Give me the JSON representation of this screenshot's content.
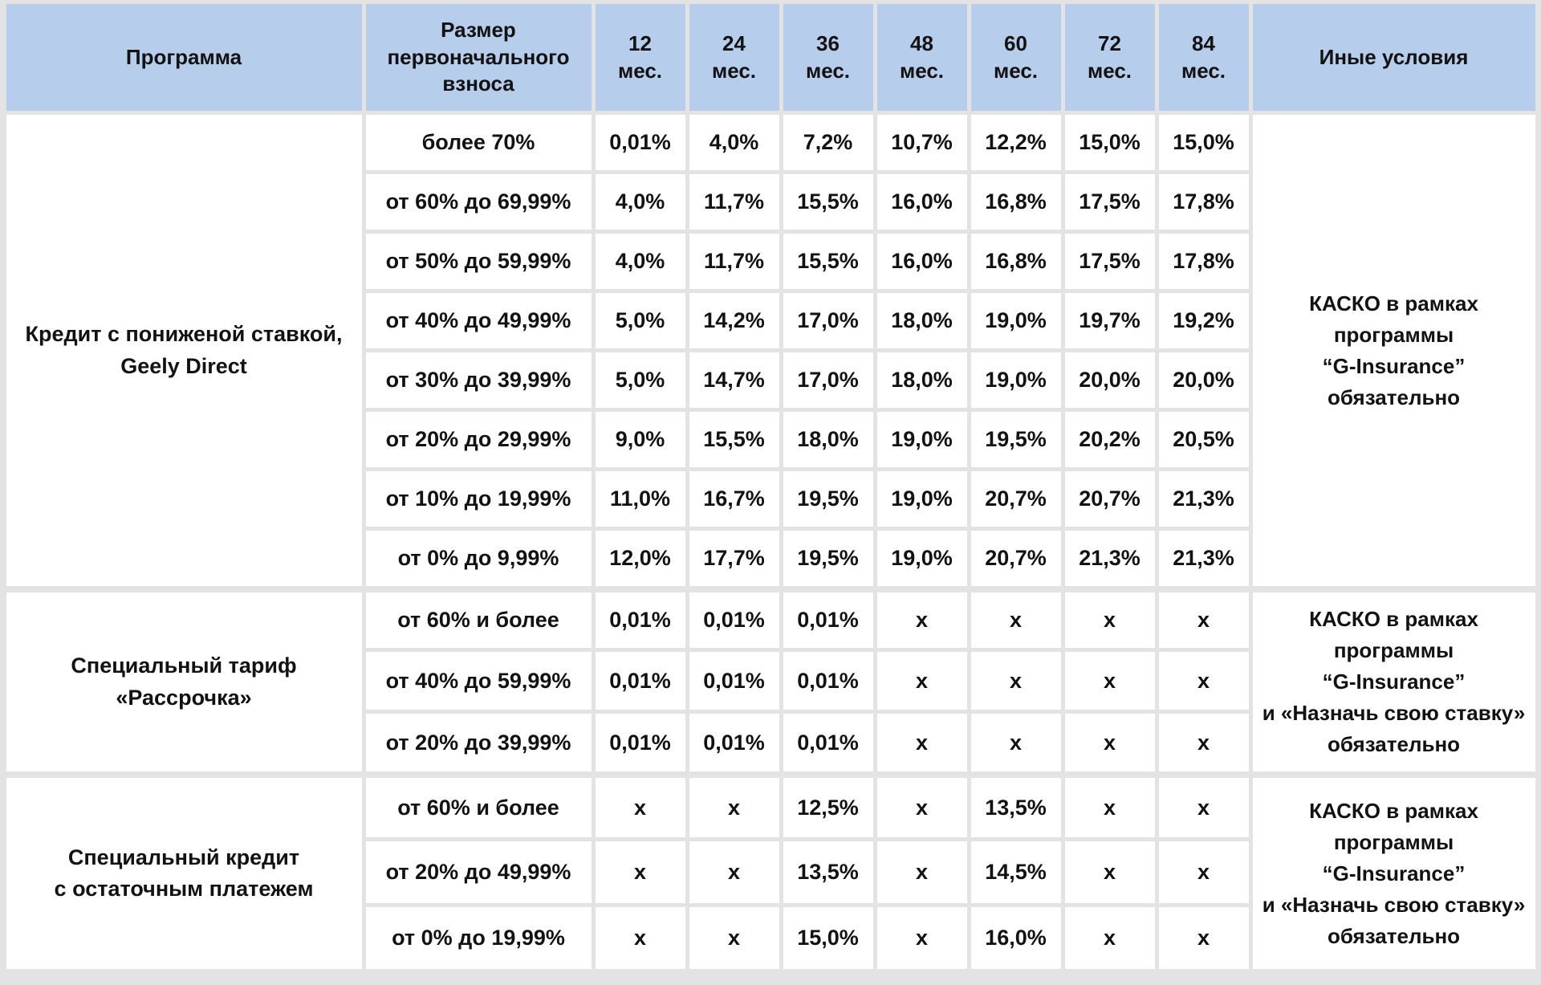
{
  "table": {
    "headers": [
      "Программа",
      "Размер\nпервоначального\nвзноса",
      "12\nмес.",
      "24\nмес.",
      "36\nмес.",
      "48\nмес.",
      "60\nмес.",
      "72\nмес.",
      "84\nмес.",
      "Иные условия"
    ],
    "groups": [
      {
        "program": "Кредит с пониженой ставкой,\nGeely Direct",
        "conditions": "КАСКО в рамках\nпрограммы\n“G-Insurance”\nобязательно",
        "rows": [
          {
            "down_payment": "более 70%",
            "rates": [
              "0,01%",
              "4,0%",
              "7,2%",
              "10,7%",
              "12,2%",
              "15,0%",
              "15,0%"
            ]
          },
          {
            "down_payment": "от 60% до 69,99%",
            "rates": [
              "4,0%",
              "11,7%",
              "15,5%",
              "16,0%",
              "16,8%",
              "17,5%",
              "17,8%"
            ]
          },
          {
            "down_payment": "от 50% до 59,99%",
            "rates": [
              "4,0%",
              "11,7%",
              "15,5%",
              "16,0%",
              "16,8%",
              "17,5%",
              "17,8%"
            ]
          },
          {
            "down_payment": "от 40% до 49,99%",
            "rates": [
              "5,0%",
              "14,2%",
              "17,0%",
              "18,0%",
              "19,0%",
              "19,7%",
              "19,2%"
            ]
          },
          {
            "down_payment": "от 30% до 39,99%",
            "rates": [
              "5,0%",
              "14,7%",
              "17,0%",
              "18,0%",
              "19,0%",
              "20,0%",
              "20,0%"
            ]
          },
          {
            "down_payment": "от 20% до 29,99%",
            "rates": [
              "9,0%",
              "15,5%",
              "18,0%",
              "19,0%",
              "19,5%",
              "20,2%",
              "20,5%"
            ]
          },
          {
            "down_payment": "от 10% до 19,99%",
            "rates": [
              "11,0%",
              "16,7%",
              "19,5%",
              "19,0%",
              "20,7%",
              "20,7%",
              "21,3%"
            ]
          },
          {
            "down_payment": "от 0% до 9,99%",
            "rates": [
              "12,0%",
              "17,7%",
              "19,5%",
              "19,0%",
              "20,7%",
              "21,3%",
              "21,3%"
            ]
          }
        ]
      },
      {
        "program": "Специальный тариф\n«Рассрочка»",
        "conditions": "КАСКО в рамках\nпрограммы\n“G-Insurance”\nи «Назначь свою ставку»\nобязательно",
        "rows": [
          {
            "down_payment": "от 60% и более",
            "rates": [
              "0,01%",
              "0,01%",
              "0,01%",
              "х",
              "х",
              "х",
              "х"
            ]
          },
          {
            "down_payment": "от 40% до 59,99%",
            "rates": [
              "0,01%",
              "0,01%",
              "0,01%",
              "х",
              "х",
              "х",
              "х"
            ]
          },
          {
            "down_payment": "от 20% до 39,99%",
            "rates": [
              "0,01%",
              "0,01%",
              "0,01%",
              "х",
              "х",
              "х",
              "х"
            ]
          }
        ]
      },
      {
        "program": "Специальный кредит\nс остаточным платежем",
        "conditions": "КАСКО в рамках\nпрограммы\n“G-Insurance”\nи «Назначь свою ставку»\nобязательно",
        "rows": [
          {
            "down_payment": "от 60% и более",
            "rates": [
              "х",
              "х",
              "12,5%",
              "х",
              "13,5%",
              "х",
              "х"
            ]
          },
          {
            "down_payment": "от 20% до 49,99%",
            "rates": [
              "х",
              "х",
              "13,5%",
              "х",
              "14,5%",
              "х",
              "х"
            ]
          },
          {
            "down_payment": "от 0% до 19,99%",
            "rates": [
              "х",
              "х",
              "15,0%",
              "х",
              "16,0%",
              "х",
              "х"
            ]
          }
        ]
      }
    ],
    "colors": {
      "header_bg": "#b7cdec",
      "cell_bg": "#ffffff",
      "gap_bg": "#e3e3e3",
      "text": "#121212"
    }
  }
}
